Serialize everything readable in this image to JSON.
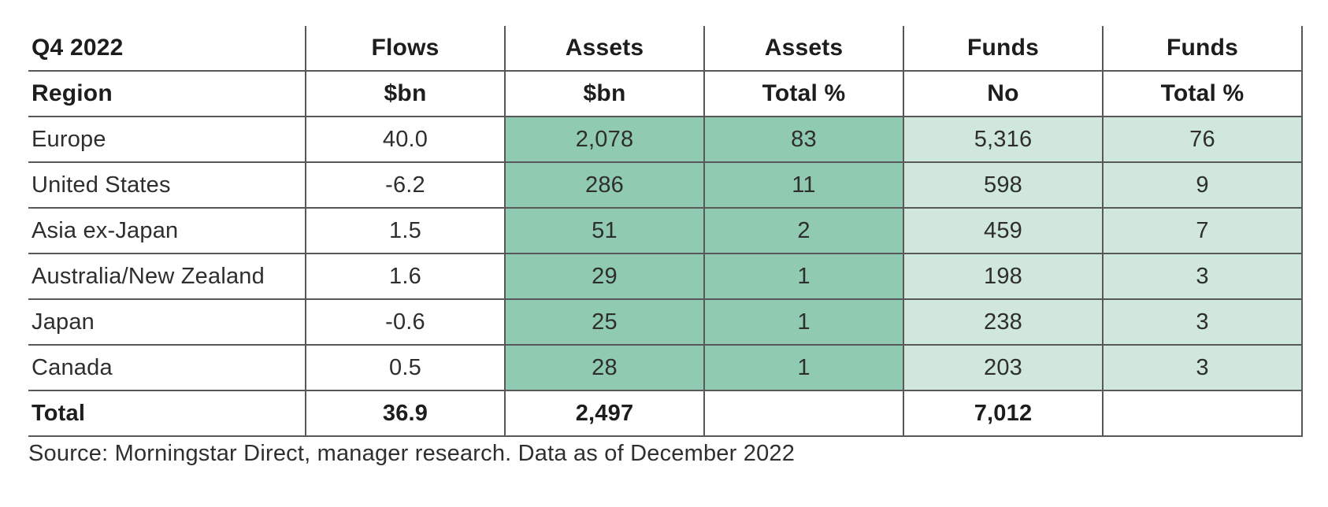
{
  "table": {
    "header_row1": [
      "Q4 2022",
      "Flows",
      "Assets",
      "Assets",
      "Funds",
      "Funds"
    ],
    "header_row2": [
      "Region",
      "$bn",
      "$bn",
      "Total %",
      "No",
      "Total %"
    ],
    "rows": [
      {
        "region": "Europe",
        "flows_bn": "40.0",
        "assets_bn": "2,078",
        "assets_pct": "83",
        "funds_no": "5,316",
        "funds_pct": "76"
      },
      {
        "region": "United States",
        "flows_bn": "-6.2",
        "assets_bn": "286",
        "assets_pct": "11",
        "funds_no": "598",
        "funds_pct": "9"
      },
      {
        "region": "Asia ex-Japan",
        "flows_bn": "1.5",
        "assets_bn": "51",
        "assets_pct": "2",
        "funds_no": "459",
        "funds_pct": "7"
      },
      {
        "region": "Australia/New Zealand",
        "flows_bn": "1.6",
        "assets_bn": "29",
        "assets_pct": "1",
        "funds_no": "198",
        "funds_pct": "3"
      },
      {
        "region": "Japan",
        "flows_bn": "-0.6",
        "assets_bn": "25",
        "assets_pct": "1",
        "funds_no": "238",
        "funds_pct": "3"
      },
      {
        "region": "Canada",
        "flows_bn": "0.5",
        "assets_bn": "28",
        "assets_pct": "1",
        "funds_no": "203",
        "funds_pct": "3"
      }
    ],
    "total_row": {
      "region": "Total",
      "flows_bn": "36.9",
      "assets_bn": "2,497",
      "assets_pct": "",
      "funds_no": "7,012",
      "funds_pct": ""
    }
  },
  "source": "Source: Morningstar Direct, manager research. Data as of December 2022",
  "colors": {
    "assets_highlight": "#90cbb1",
    "funds_highlight": "#d0e7db",
    "border": "#58585a"
  },
  "chart_data": {
    "type": "table",
    "title": "Q4 2022",
    "columns": [
      "Region",
      "Flows $bn",
      "Assets $bn",
      "Assets Total %",
      "Funds No",
      "Funds Total %"
    ],
    "rows": [
      [
        "Europe",
        40.0,
        2078,
        83,
        5316,
        76
      ],
      [
        "United States",
        -6.2,
        286,
        11,
        598,
        9
      ],
      [
        "Asia ex-Japan",
        1.5,
        51,
        2,
        459,
        7
      ],
      [
        "Australia/New Zealand",
        1.6,
        29,
        1,
        198,
        3
      ],
      [
        "Japan",
        -0.6,
        25,
        1,
        238,
        3
      ],
      [
        "Canada",
        0.5,
        28,
        1,
        203,
        3
      ],
      [
        "Total",
        36.9,
        2497,
        null,
        7012,
        null
      ]
    ],
    "layout_hints": {
      "assets_columns_fill": "#90cbb1",
      "funds_columns_fill": "#d0e7db",
      "total_row_fill": "#ffffff",
      "grid": "on"
    },
    "source": "Source: Morningstar Direct, manager research. Data as of December 2022"
  }
}
